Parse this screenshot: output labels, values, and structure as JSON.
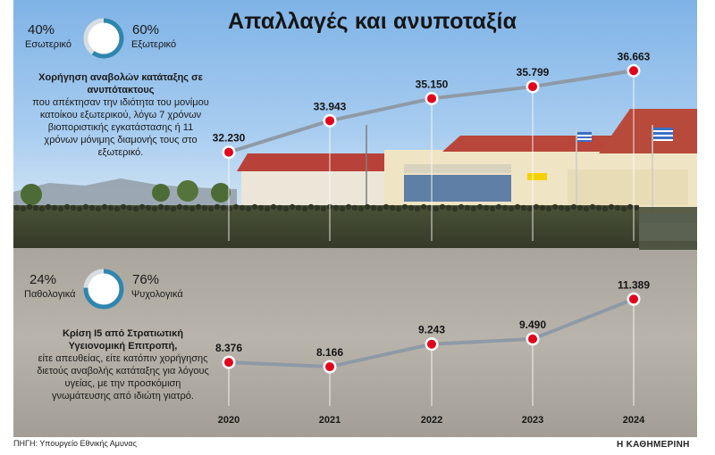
{
  "title": "Απαλλαγές και ανυποταξία",
  "colors": {
    "marker": "#e3001b",
    "line": "#8e9aa6",
    "ring": "#2f86ad",
    "ring_track": "#d7dde2"
  },
  "top_block": {
    "left_pct": "40%",
    "left_label": "Εσωτερικό",
    "right_pct": "60%",
    "right_label": "Εξωτερικό",
    "ring_fraction": 0.6,
    "note_title": "Χορήγηση αναβολών κατάταξης σε ανυπότακτους",
    "note_body": "που απέκτησαν την ιδιότητα του μονίμου κατοίκου εξωτερικού, λόγω 7 χρόνων βιοποριστικής εγκατάστασης ή 11 χρόνων μόνιμης διαμονής τους στο εξωτερικό."
  },
  "bottom_block": {
    "left_pct": "24%",
    "left_label": "Παθολογικά",
    "right_pct": "76%",
    "right_label": "Ψυχολογικά",
    "ring_fraction": 0.76,
    "note_title": "Κρίση Ι5 από Στρατιωτική Υγειονομική Επιτροπή,",
    "note_body": "είτε απευθείας, είτε κατόπιν χορήγησης διετούς αναβολής κατάταξης για λόγους υγείας, με την προσκόμιση γνωμάτευσης από ιδιώτη γιατρό."
  },
  "chart_data": [
    {
      "type": "line",
      "x": [
        "2020",
        "2021",
        "2022",
        "2023",
        "2024"
      ],
      "values": [
        32230,
        33943,
        35150,
        35799,
        36663
      ],
      "labels": [
        "32.230",
        "33.943",
        "35.150",
        "35.799",
        "36.663"
      ],
      "ylim": [
        31000,
        37500
      ]
    },
    {
      "type": "line",
      "x": [
        "2020",
        "2021",
        "2022",
        "2023",
        "2024"
      ],
      "values": [
        8376,
        8166,
        9243,
        9490,
        11389
      ],
      "labels": [
        "8.376",
        "8.166",
        "9.243",
        "9.490",
        "11.389"
      ],
      "ylim": [
        7700,
        11700
      ]
    }
  ],
  "source": "ΠΗΓΗ: Υπουργείο Εθνικής Αμυνας",
  "brand": "Η ΚΑΘΗΜΕΡΙΝΗ"
}
